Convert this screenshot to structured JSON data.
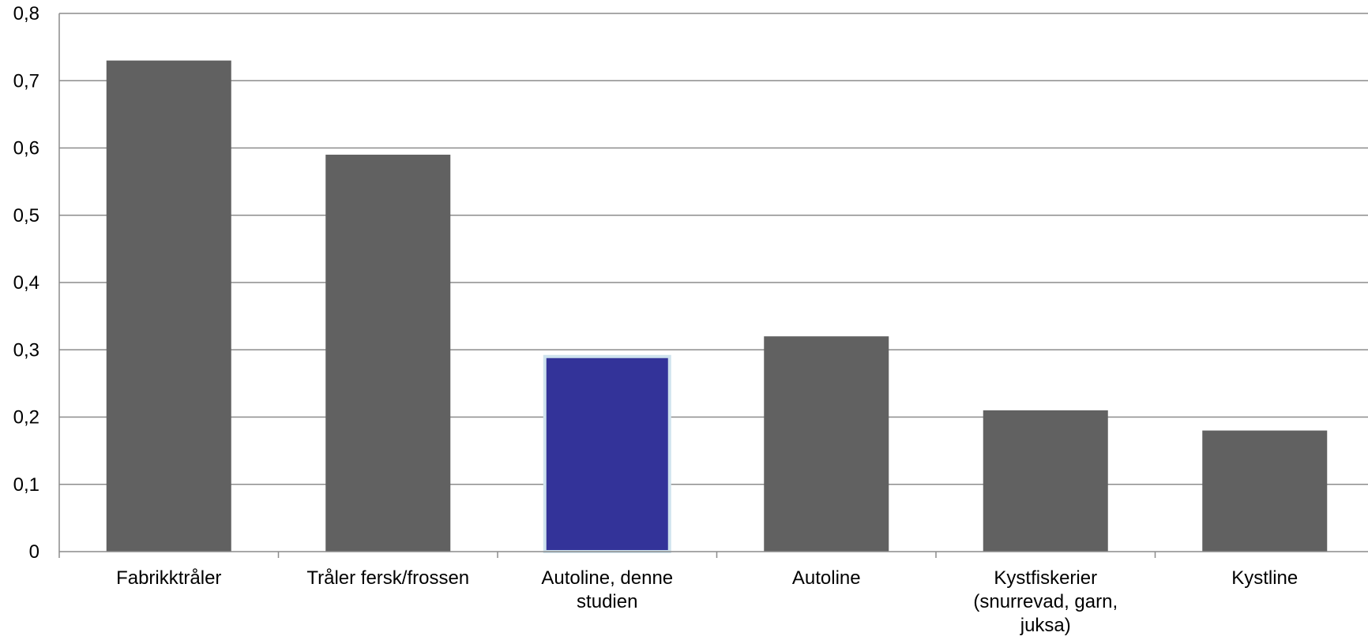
{
  "chart_data": {
    "type": "bar",
    "categories": [
      [
        "Fabrikktråler"
      ],
      [
        "Tråler fersk/frossen"
      ],
      [
        "Autoline, denne",
        "studien"
      ],
      [
        "Autoline"
      ],
      [
        "Kystfiskerier",
        "(snurrevad, garn,",
        "juksa)"
      ],
      [
        "Kystline"
      ]
    ],
    "values": [
      0.73,
      0.59,
      0.29,
      0.32,
      0.21,
      0.18
    ],
    "highlight_index": 2,
    "ylim": [
      0,
      0.8
    ],
    "yticks": [
      "0",
      "0,1",
      "0,2",
      "0,3",
      "0,4",
      "0,5",
      "0,6",
      "0,7",
      "0,8"
    ],
    "ytick_values": [
      0,
      0.1,
      0.2,
      0.3,
      0.4,
      0.5,
      0.6,
      0.7,
      0.8
    ],
    "grid": true,
    "title": "",
    "xlabel": "",
    "ylabel": "",
    "colors": {
      "bar": "#616161",
      "highlight": "#333399",
      "highlight_border": "#cfe3ee",
      "grid": "#8c8c8c",
      "axis": "#8c8c8c"
    }
  }
}
